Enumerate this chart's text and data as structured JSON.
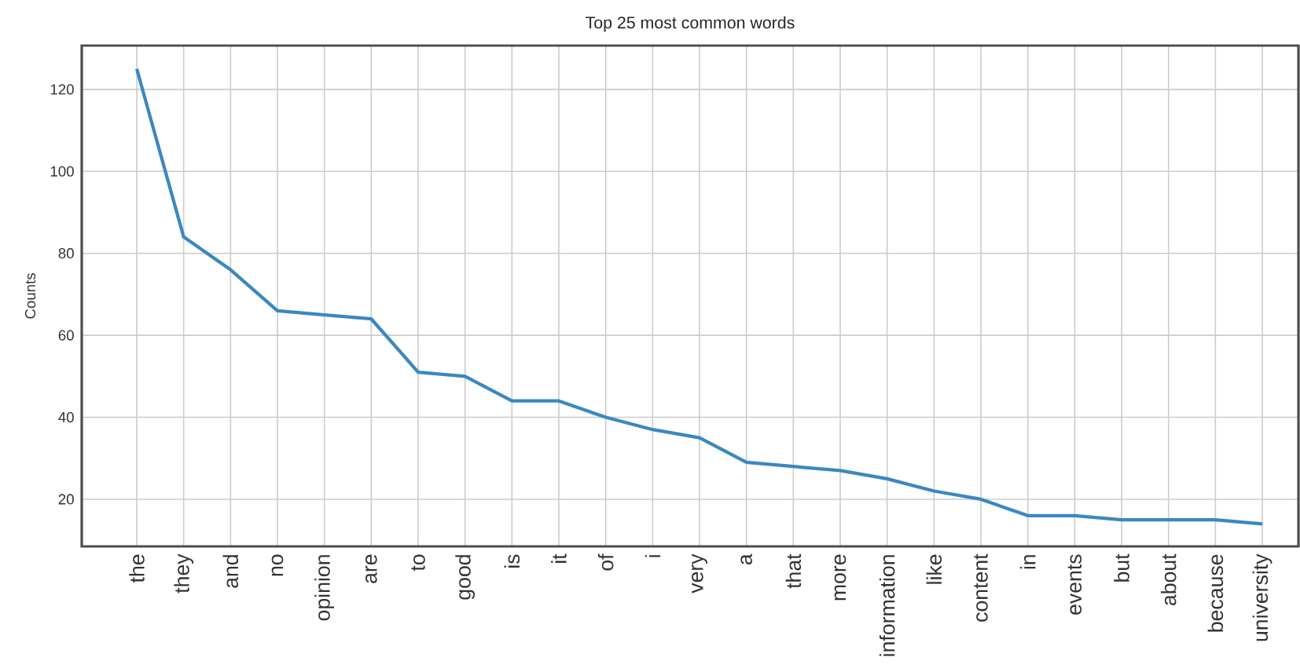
{
  "chart_data": {
    "type": "line",
    "title": "Top 25 most common words",
    "ylabel": "Counts",
    "categories": [
      "the",
      "they",
      "and",
      "no",
      "opinion",
      "are",
      "to",
      "good",
      "is",
      "it",
      "of",
      "i",
      "very",
      "a",
      "that",
      "more",
      "information",
      "like",
      "content",
      "in",
      "events",
      "but",
      "about",
      "because",
      "university"
    ],
    "series": [
      {
        "color": "#3a88c0",
        "values": [
          125,
          84,
          76,
          66,
          65,
          64,
          51,
          50,
          44,
          44,
          40,
          37,
          35,
          29,
          28,
          27,
          25,
          22,
          20,
          16,
          16,
          15,
          15,
          15,
          14
        ]
      }
    ],
    "ylim": [
      8.5,
      130.7
    ],
    "yticks": [
      20,
      40,
      60,
      80,
      100,
      120
    ],
    "grid": true,
    "marker": "none",
    "line_style": "solid"
  }
}
